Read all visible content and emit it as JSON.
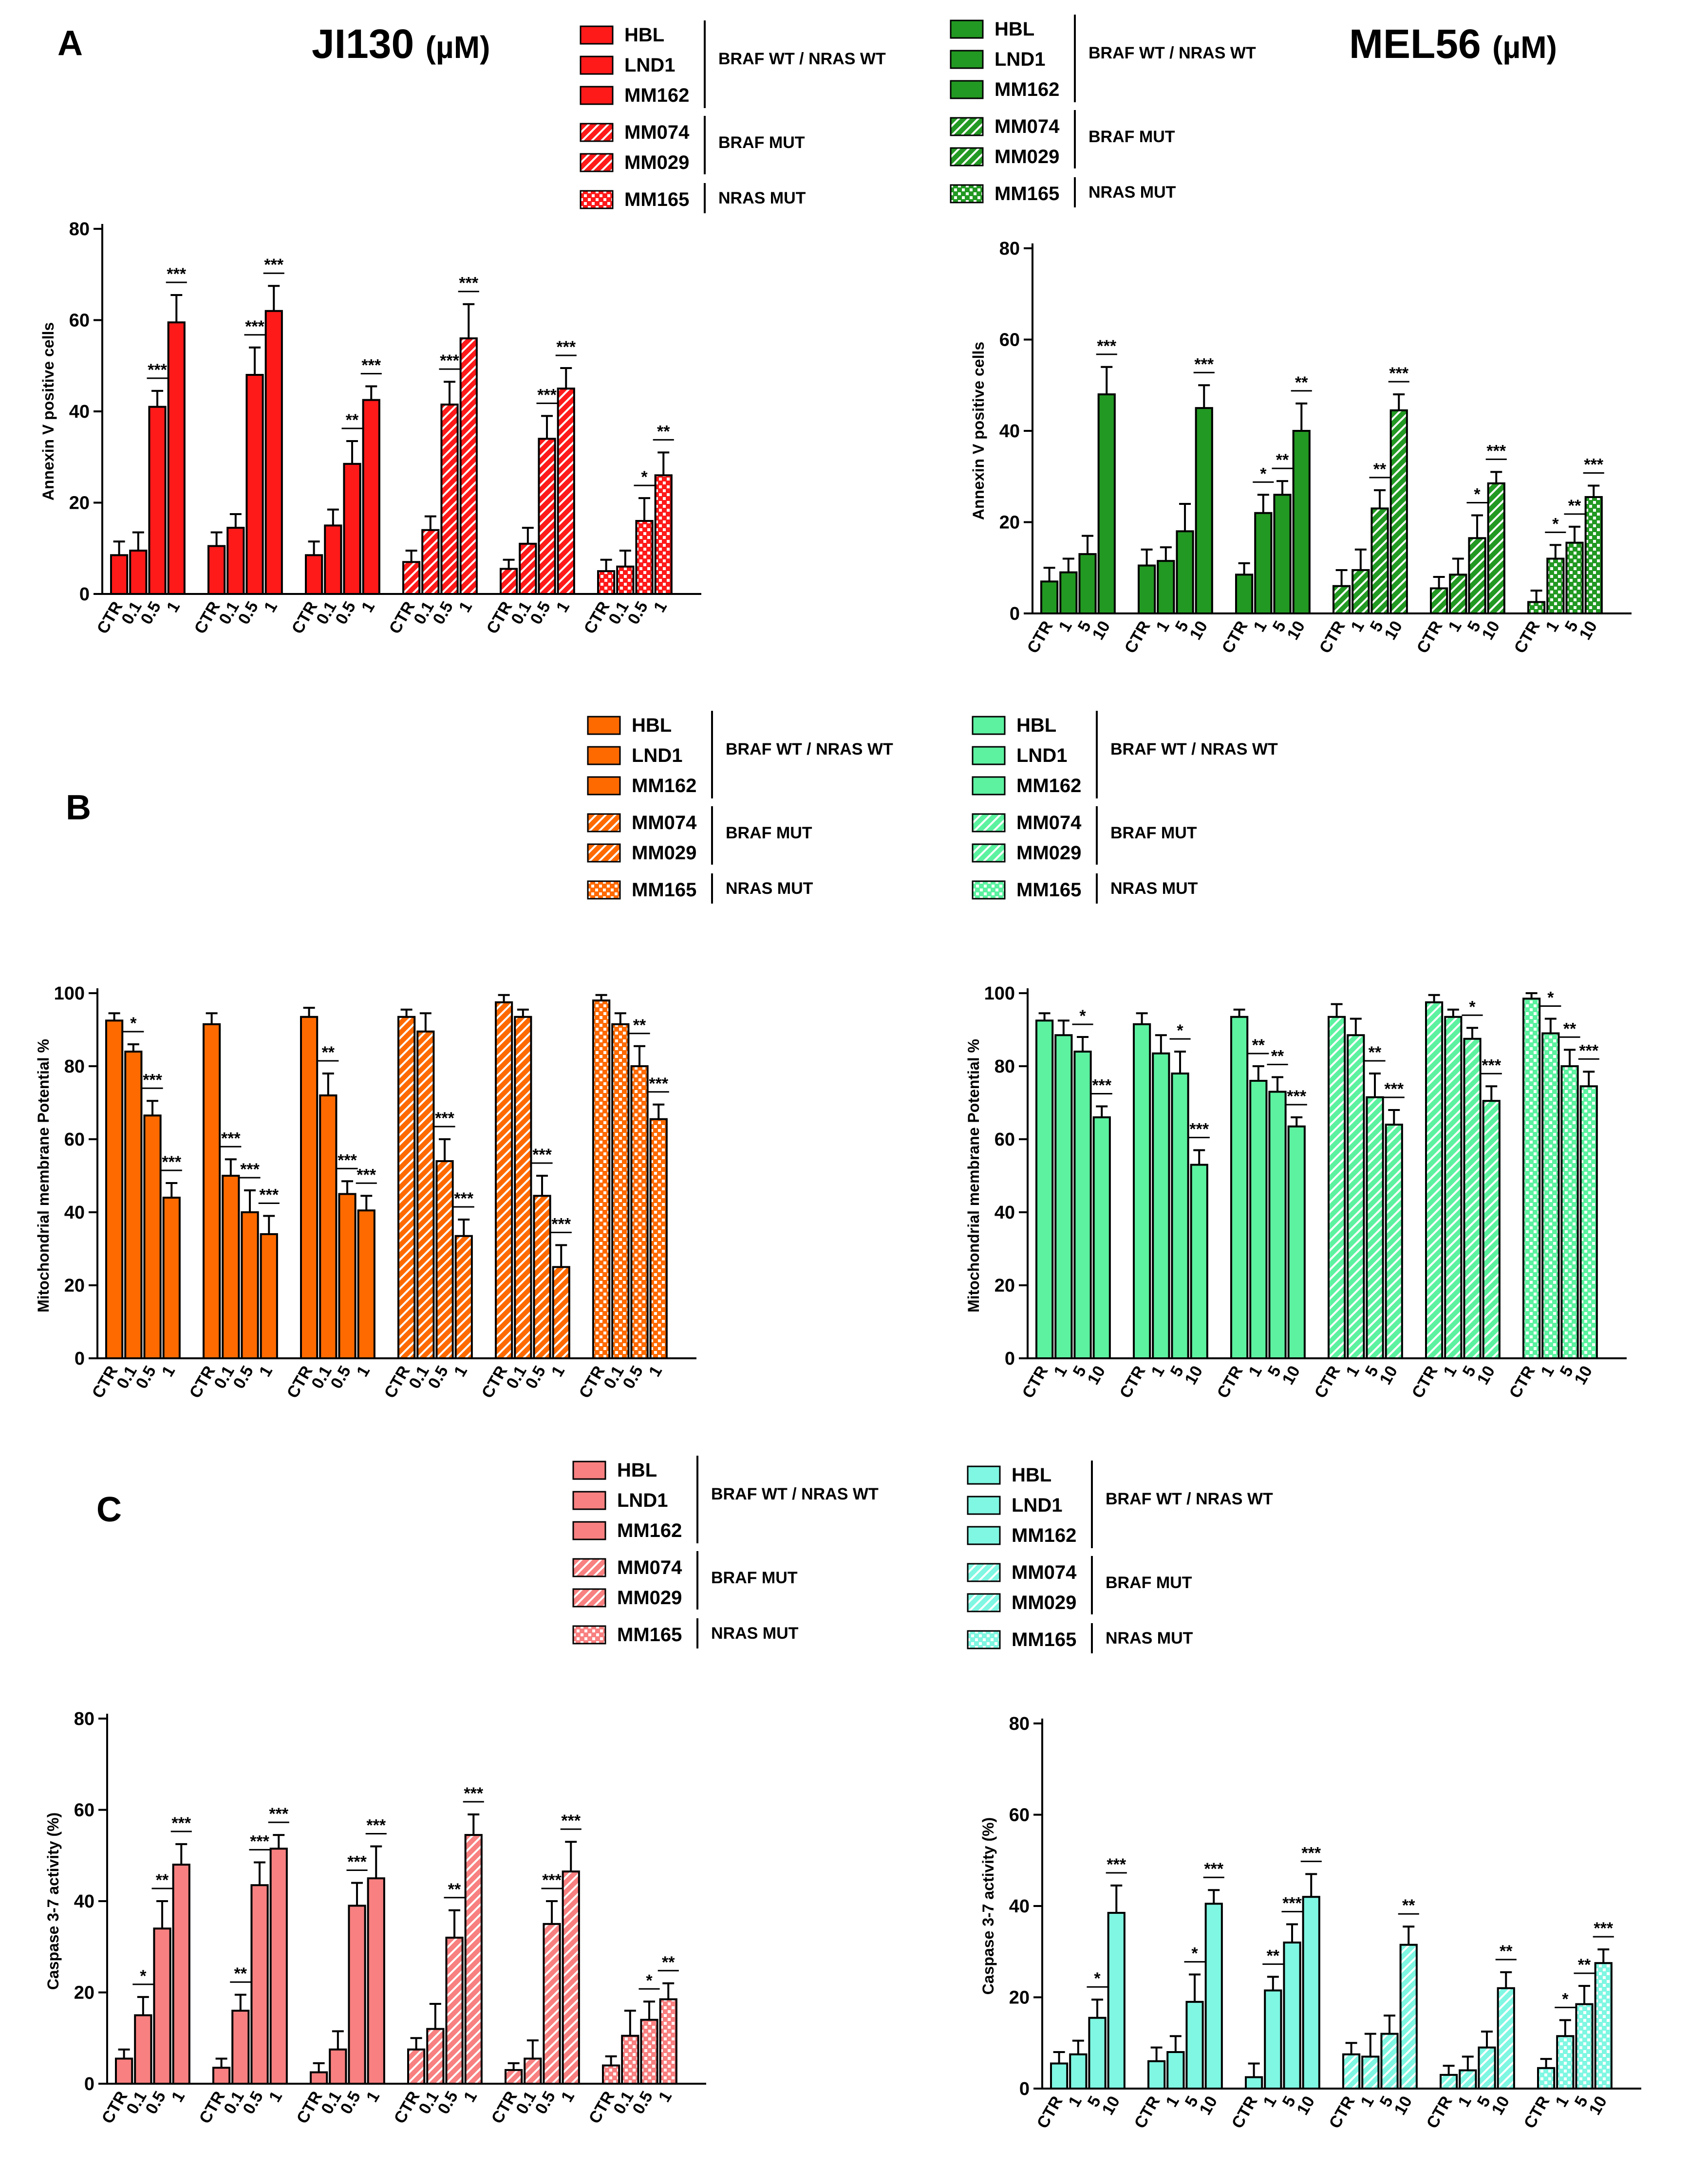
{
  "panels": [
    {
      "letter": "A"
    },
    {
      "letter": "B"
    },
    {
      "letter": "C"
    }
  ],
  "drugs": {
    "left": {
      "name": "JI130",
      "unit": "(µM)"
    },
    "right": {
      "name": "MEL56",
      "unit": "(µM)"
    }
  },
  "legend": {
    "groups": [
      {
        "label": "BRAF WT / NRAS WT",
        "lines": [
          "HBL",
          "LND1",
          "MM162"
        ]
      },
      {
        "label": "BRAF MUT",
        "lines": [
          "MM074",
          "MM029"
        ]
      },
      {
        "label": "NRAS MUT",
        "lines": [
          "MM165"
        ]
      }
    ]
  },
  "colors": {
    "A_left": "#ff1a1a",
    "A_right": "#229922",
    "B_left": "#ff6a00",
    "B_right": "#5cf2a0",
    "C_left": "#f88080",
    "C_right": "#7ff7e2",
    "errorbar": "#000000"
  },
  "chart_data": [
    {
      "id": "A_left",
      "type": "bar",
      "title": "JI130 (µM)",
      "ylabel": "Annexin V positive cells",
      "xlabel": "",
      "ylim": [
        0,
        80
      ],
      "yticks": [
        0,
        20,
        40,
        60,
        80
      ],
      "categories": [
        "CTR",
        "0.1",
        "0.5",
        "1"
      ],
      "series": [
        {
          "name": "HBL",
          "pattern": "solid",
          "values": [
            8.5,
            9.5,
            41,
            59.5
          ],
          "errors": [
            3,
            4,
            3.5,
            6
          ],
          "sig": [
            "",
            "***",
            "***"
          ]
        },
        {
          "name": "LND1",
          "pattern": "solid",
          "values": [
            10.5,
            14.5,
            48,
            62
          ],
          "errors": [
            3,
            3,
            6,
            5.5
          ],
          "sig": [
            "",
            "***",
            "***"
          ]
        },
        {
          "name": "MM162",
          "pattern": "solid",
          "values": [
            8.5,
            15,
            28.5,
            42.5
          ],
          "errors": [
            3,
            3.5,
            5,
            3
          ],
          "sig": [
            "",
            "**",
            "***"
          ]
        },
        {
          "name": "MM074",
          "pattern": "hatch",
          "values": [
            7,
            14,
            41.5,
            56
          ],
          "errors": [
            2.5,
            3,
            5,
            7.5
          ],
          "sig": [
            "",
            "***",
            "***"
          ]
        },
        {
          "name": "MM029",
          "pattern": "hatch",
          "values": [
            5.5,
            11,
            34,
            45
          ],
          "errors": [
            2,
            3.5,
            5,
            4.5
          ],
          "sig": [
            "",
            "***",
            "***"
          ]
        },
        {
          "name": "MM165",
          "pattern": "dots",
          "values": [
            5,
            6,
            16,
            26
          ],
          "errors": [
            2.5,
            3.5,
            5,
            5
          ],
          "sig": [
            "",
            "*",
            "**"
          ]
        }
      ]
    },
    {
      "id": "A_right",
      "type": "bar",
      "title": "MEL56 (µM)",
      "ylabel": "Annexin V positive cells",
      "xlabel": "",
      "ylim": [
        0,
        80
      ],
      "yticks": [
        0,
        20,
        40,
        60,
        80
      ],
      "categories": [
        "CTR",
        "1",
        "5",
        "10"
      ],
      "series": [
        {
          "name": "HBL",
          "pattern": "solid",
          "values": [
            7,
            9,
            13,
            48
          ],
          "errors": [
            3,
            3,
            4,
            6
          ],
          "sig": [
            "",
            "",
            "***"
          ]
        },
        {
          "name": "LND1",
          "pattern": "solid",
          "values": [
            10.5,
            11.5,
            18,
            45
          ],
          "errors": [
            3.5,
            3,
            6,
            5
          ],
          "sig": [
            "",
            "",
            "***"
          ]
        },
        {
          "name": "MM162",
          "pattern": "solid",
          "values": [
            8.5,
            22,
            26,
            40
          ],
          "errors": [
            2.5,
            4,
            3,
            6
          ],
          "sig": [
            "*",
            "**",
            "**"
          ]
        },
        {
          "name": "MM074",
          "pattern": "hatch",
          "values": [
            6,
            9.5,
            23,
            44.5
          ],
          "errors": [
            3.5,
            4.5,
            4,
            3.5
          ],
          "sig": [
            "",
            "**",
            "***"
          ]
        },
        {
          "name": "MM029",
          "pattern": "hatch",
          "values": [
            5.5,
            8.5,
            16.5,
            28.5
          ],
          "errors": [
            2.5,
            3.5,
            5,
            2.5
          ],
          "sig": [
            "",
            "*",
            "***"
          ]
        },
        {
          "name": "MM165",
          "pattern": "dots",
          "values": [
            2.5,
            12,
            15.5,
            25.5
          ],
          "errors": [
            2.5,
            3,
            3.5,
            2.5
          ],
          "sig": [
            "*",
            "**",
            "***"
          ]
        }
      ]
    },
    {
      "id": "B_left",
      "type": "bar",
      "title": "JI130 (µM)",
      "ylabel": "Mitochondrial membrane Potential %",
      "xlabel": "",
      "ylim": [
        0,
        100
      ],
      "yticks": [
        0,
        20,
        40,
        60,
        80,
        100
      ],
      "categories": [
        "CTR",
        "0.1",
        "0.5",
        "1"
      ],
      "series": [
        {
          "name": "HBL",
          "pattern": "solid",
          "values": [
            92.5,
            84,
            66.5,
            44
          ],
          "errors": [
            2,
            2,
            4,
            4
          ],
          "sig": [
            "*",
            "***",
            "***"
          ]
        },
        {
          "name": "LND1",
          "pattern": "solid",
          "values": [
            91.5,
            50,
            40,
            34
          ],
          "errors": [
            3,
            4.5,
            6,
            5
          ],
          "sig": [
            "***",
            "***",
            "***"
          ]
        },
        {
          "name": "MM162",
          "pattern": "solid",
          "values": [
            93.5,
            72,
            45,
            40.5
          ],
          "errors": [
            2.5,
            6,
            3.5,
            4
          ],
          "sig": [
            "**",
            "***",
            "***"
          ]
        },
        {
          "name": "MM074",
          "pattern": "hatch",
          "values": [
            93.5,
            89.5,
            54,
            33.5
          ],
          "errors": [
            2,
            5,
            6,
            4.5
          ],
          "sig": [
            "",
            "***",
            "***"
          ]
        },
        {
          "name": "MM029",
          "pattern": "hatch",
          "values": [
            97.5,
            93.5,
            44.5,
            25
          ],
          "errors": [
            2,
            2,
            5.5,
            6
          ],
          "sig": [
            "",
            "***",
            "***"
          ]
        },
        {
          "name": "MM165",
          "pattern": "dots",
          "values": [
            98,
            91.5,
            80,
            65.5
          ],
          "errors": [
            1.5,
            3,
            5.5,
            4
          ],
          "sig": [
            "",
            "**",
            "***"
          ]
        }
      ]
    },
    {
      "id": "B_right",
      "type": "bar",
      "title": "MEL56 (µM)",
      "ylabel": "Mitochondrial membrane Potential %",
      "xlabel": "",
      "ylim": [
        0,
        100
      ],
      "yticks": [
        0,
        20,
        40,
        60,
        80,
        100
      ],
      "categories": [
        "CTR",
        "1",
        "5",
        "10"
      ],
      "series": [
        {
          "name": "HBL",
          "pattern": "solid",
          "values": [
            92.5,
            88.5,
            84,
            66
          ],
          "errors": [
            2,
            4,
            4,
            3
          ],
          "sig": [
            "",
            "*",
            "***"
          ]
        },
        {
          "name": "LND1",
          "pattern": "solid",
          "values": [
            91.5,
            83.5,
            78,
            53
          ],
          "errors": [
            3,
            5,
            6,
            4
          ],
          "sig": [
            "",
            "*",
            "***"
          ]
        },
        {
          "name": "MM162",
          "pattern": "solid",
          "values": [
            93.5,
            76,
            73,
            63.5
          ],
          "errors": [
            2,
            4,
            4,
            2.5
          ],
          "sig": [
            "**",
            "**",
            "***"
          ]
        },
        {
          "name": "MM074",
          "pattern": "hatch",
          "values": [
            93.5,
            88.5,
            71.5,
            64
          ],
          "errors": [
            3.5,
            4.5,
            6.5,
            4
          ],
          "sig": [
            "",
            "**",
            "***"
          ]
        },
        {
          "name": "MM029",
          "pattern": "hatch",
          "values": [
            97.5,
            93.5,
            87.5,
            70.5
          ],
          "errors": [
            2,
            2,
            3,
            4
          ],
          "sig": [
            "",
            "*",
            "***"
          ]
        },
        {
          "name": "MM165",
          "pattern": "dots",
          "values": [
            98.5,
            89,
            80,
            74.5
          ],
          "errors": [
            1.5,
            4,
            4.5,
            4
          ],
          "sig": [
            "*",
            "**",
            "***"
          ]
        }
      ]
    },
    {
      "id": "C_left",
      "type": "bar",
      "title": "JI130 (µM)",
      "ylabel": "Caspase 3-7 activity (%)",
      "xlabel": "",
      "ylim": [
        0,
        80
      ],
      "yticks": [
        0,
        20,
        40,
        60,
        80
      ],
      "categories": [
        "CTR",
        "0.1",
        "0.5",
        "1"
      ],
      "series": [
        {
          "name": "HBL",
          "pattern": "solid",
          "values": [
            5.5,
            15,
            34,
            48
          ],
          "errors": [
            2,
            4,
            6,
            4.5
          ],
          "sig": [
            "*",
            "**",
            "***"
          ]
        },
        {
          "name": "LND1",
          "pattern": "solid",
          "values": [
            3.5,
            16,
            43.5,
            51.5
          ],
          "errors": [
            2,
            3.5,
            5,
            3
          ],
          "sig": [
            "**",
            "***",
            "***"
          ]
        },
        {
          "name": "MM162",
          "pattern": "solid",
          "values": [
            2.5,
            7.5,
            39,
            45
          ],
          "errors": [
            2,
            4,
            5,
            7
          ],
          "sig": [
            "",
            "***",
            "***"
          ]
        },
        {
          "name": "MM074",
          "pattern": "hatch",
          "values": [
            7.5,
            12,
            32,
            54.5
          ],
          "errors": [
            2.5,
            5.5,
            6,
            4.5
          ],
          "sig": [
            "",
            "**",
            "***"
          ]
        },
        {
          "name": "MM029",
          "pattern": "hatch",
          "values": [
            3,
            5.5,
            35,
            46.5
          ],
          "errors": [
            1.5,
            4,
            5,
            6.5
          ],
          "sig": [
            "",
            "***",
            "***"
          ]
        },
        {
          "name": "MM165",
          "pattern": "dots",
          "values": [
            4,
            10.5,
            14,
            18.5
          ],
          "errors": [
            2,
            5.5,
            4,
            3.5
          ],
          "sig": [
            "",
            "*",
            "**"
          ]
        }
      ]
    },
    {
      "id": "C_right",
      "type": "bar",
      "title": "MEL56 (µM)",
      "ylabel": "Caspase 3-7 activity (%)",
      "xlabel": "",
      "ylim": [
        0,
        80
      ],
      "yticks": [
        0,
        20,
        40,
        60,
        80
      ],
      "categories": [
        "CTR",
        "1",
        "5",
        "10"
      ],
      "series": [
        {
          "name": "HBL",
          "pattern": "solid",
          "values": [
            5.5,
            7.5,
            15.5,
            38.5
          ],
          "errors": [
            2.5,
            3,
            4,
            6
          ],
          "sig": [
            "",
            "*",
            "***"
          ]
        },
        {
          "name": "LND1",
          "pattern": "solid",
          "values": [
            6,
            8,
            19,
            40.5
          ],
          "errors": [
            3,
            3.5,
            6,
            3
          ],
          "sig": [
            "",
            "*",
            "***"
          ]
        },
        {
          "name": "MM162",
          "pattern": "solid",
          "values": [
            2.5,
            21.5,
            32,
            42
          ],
          "errors": [
            3,
            3,
            4,
            5
          ],
          "sig": [
            "**",
            "***",
            "***"
          ]
        },
        {
          "name": "MM074",
          "pattern": "hatch",
          "values": [
            7.5,
            7,
            12,
            31.5
          ],
          "errors": [
            2.5,
            5,
            4,
            4
          ],
          "sig": [
            "",
            "",
            "**"
          ]
        },
        {
          "name": "MM029",
          "pattern": "hatch",
          "values": [
            3,
            4,
            9,
            22
          ],
          "errors": [
            2,
            3,
            3.5,
            3.5
          ],
          "sig": [
            "",
            "",
            "**"
          ]
        },
        {
          "name": "MM165",
          "pattern": "dots",
          "values": [
            4.5,
            11.5,
            18.5,
            27.5
          ],
          "errors": [
            2,
            3.5,
            4,
            3
          ],
          "sig": [
            "*",
            "**",
            "***"
          ]
        }
      ]
    }
  ]
}
